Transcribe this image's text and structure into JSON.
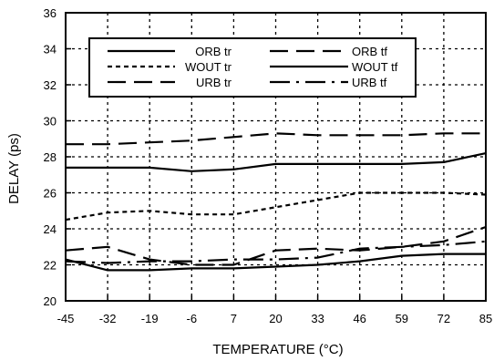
{
  "chart_data": {
    "type": "line",
    "xlabel": "TEMPERATURE (°C)",
    "ylabel": "DELAY (ps)",
    "xlim": [
      -45,
      85
    ],
    "ylim": [
      20,
      36
    ],
    "x_ticks": [
      "-45",
      "-32",
      "-19",
      "-6",
      "7",
      "20",
      "33",
      "46",
      "59",
      "72",
      "85"
    ],
    "y_ticks": [
      "20",
      "22",
      "24",
      "26",
      "28",
      "30",
      "32",
      "34",
      "36"
    ],
    "grid": true,
    "legend_position": "top",
    "x": [
      -45,
      -32,
      -19,
      -6,
      7,
      20,
      33,
      46,
      59,
      72,
      85
    ],
    "series": [
      {
        "name": "ORB tr",
        "style": "solid",
        "values": [
          22.3,
          21.7,
          21.7,
          21.8,
          21.8,
          21.9,
          22.0,
          22.2,
          22.5,
          22.6,
          22.6
        ]
      },
      {
        "name": "ORB tf",
        "style": "long-dash",
        "values": [
          28.7,
          28.7,
          28.8,
          28.9,
          29.1,
          29.3,
          29.2,
          29.2,
          29.2,
          29.3,
          29.3
        ]
      },
      {
        "name": "WOUT tr",
        "style": "short-dash",
        "values": [
          24.5,
          24.9,
          25.0,
          24.8,
          24.8,
          25.2,
          25.6,
          26.0,
          26.0,
          26.0,
          25.9
        ]
      },
      {
        "name": "WOUT tf",
        "style": "solid",
        "values": [
          27.4,
          27.4,
          27.4,
          27.2,
          27.3,
          27.6,
          27.6,
          27.6,
          27.6,
          27.7,
          28.2
        ]
      },
      {
        "name": "URB tr",
        "style": "long-dash",
        "values": [
          22.8,
          23.0,
          22.3,
          22.0,
          22.0,
          22.8,
          22.9,
          22.8,
          23.0,
          23.3,
          24.1
        ]
      },
      {
        "name": "URB tf",
        "style": "dash-dot",
        "values": [
          22.2,
          22.1,
          22.2,
          22.2,
          22.3,
          22.3,
          22.4,
          22.9,
          23.0,
          23.1,
          23.3
        ]
      }
    ]
  }
}
